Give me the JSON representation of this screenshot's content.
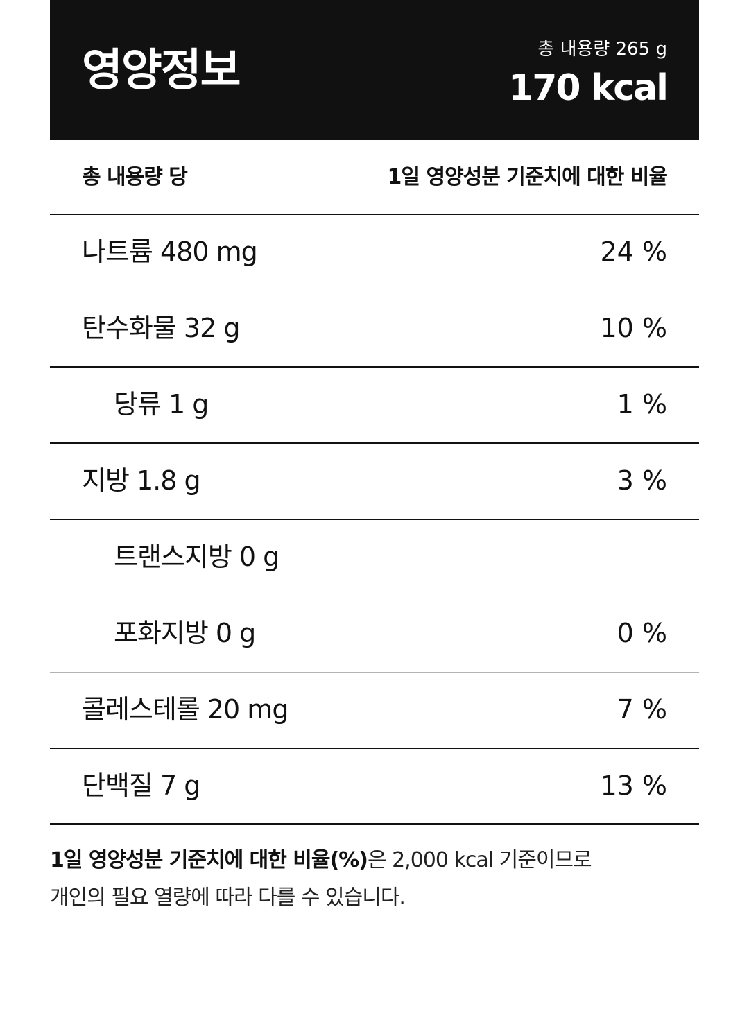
{
  "header": {
    "title": "영양정보",
    "total_amount": "총 내용량 265 g",
    "calories": "170 kcal"
  },
  "columns": {
    "left": "총 내용량 당",
    "right": "1일 영양성분 기준치에 대한 비율"
  },
  "nutrients": [
    {
      "name": "나트륨 480 mg",
      "percent": "24 %"
    },
    {
      "name": "탄수화물 32 g",
      "percent": "10 %"
    },
    {
      "name": "당류 1 g",
      "percent": "1 %"
    },
    {
      "name": "지방 1.8 g",
      "percent": "3 %"
    },
    {
      "name": "트랜스지방 0 g",
      "percent": ""
    },
    {
      "name": "포화지방 0 g",
      "percent": "0 %"
    },
    {
      "name": "콜레스테롤 20 mg",
      "percent": "7 %"
    },
    {
      "name": "단백질 7 g",
      "percent": "13 %"
    }
  ],
  "footnote": {
    "bold": "1일 영양성분 기준치에 대한 비율(%)",
    "line1_rest": "은 2,000 kcal 기준이므로",
    "line2": "개인의 필요 열량에 따라 다를 수 있습니다."
  }
}
